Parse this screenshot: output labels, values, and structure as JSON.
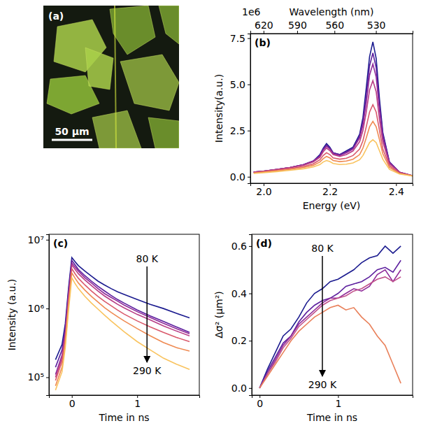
{
  "chart_data": [
    {
      "type": "image",
      "label": "(a)",
      "scale_bar": "50 µm"
    },
    {
      "type": "line",
      "label": "(b)",
      "xlabel": "Energy (eV)",
      "ylabel": "Intensity(a.u.)",
      "y_offset_label": "1e6",
      "x2label": "Wavelength (nm)",
      "xlim": [
        1.96,
        2.45
      ],
      "xticks": [
        {
          "value": 2.0,
          "label": "2.0"
        },
        {
          "value": 2.2,
          "label": "2.2"
        },
        {
          "value": 2.4,
          "label": "2.4"
        }
      ],
      "x2ticks": [
        {
          "value": 1.9998,
          "label": "620"
        },
        {
          "value": 2.1014,
          "label": "590"
        },
        {
          "value": 2.214,
          "label": "560"
        },
        {
          "value": 2.3393,
          "label": "530"
        }
      ],
      "ylim": [
        -0.35,
        7.75
      ],
      "yticks": [
        {
          "value": 0,
          "label": "0.0"
        },
        {
          "value": 2.5,
          "label": "2.5"
        },
        {
          "value": 5,
          "label": "5.0"
        },
        {
          "value": 7.5,
          "label": "7.5"
        }
      ],
      "x": [
        1.97,
        2.0,
        2.04,
        2.08,
        2.12,
        2.15,
        2.17,
        2.18,
        2.19,
        2.2,
        2.21,
        2.23,
        2.25,
        2.27,
        2.29,
        2.3,
        2.31,
        2.32,
        2.33,
        2.34,
        2.35,
        2.36,
        2.38,
        2.41,
        2.45
      ],
      "series": [
        {
          "color": "#1b1b8f",
          "values": [
            0.25,
            0.3,
            0.4,
            0.5,
            0.65,
            0.85,
            1.2,
            1.55,
            1.8,
            1.6,
            1.3,
            1.2,
            1.4,
            1.6,
            2.3,
            3.2,
            4.8,
            6.5,
            7.3,
            6.4,
            4.2,
            2.4,
            0.8,
            0.25,
            0.05
          ]
        },
        {
          "color": "#5c1f9e",
          "values": [
            0.25,
            0.3,
            0.4,
            0.5,
            0.65,
            0.85,
            1.15,
            1.5,
            1.72,
            1.55,
            1.3,
            1.2,
            1.35,
            1.55,
            2.2,
            3.0,
            4.4,
            6.0,
            6.7,
            5.9,
            3.9,
            2.3,
            0.8,
            0.25,
            0.05
          ]
        },
        {
          "color": "#8f2a99",
          "values": [
            0.25,
            0.3,
            0.4,
            0.5,
            0.65,
            0.85,
            1.1,
            1.45,
            1.65,
            1.5,
            1.25,
            1.15,
            1.3,
            1.5,
            2.1,
            2.8,
            4.0,
            5.5,
            6.1,
            5.4,
            3.6,
            2.1,
            0.75,
            0.25,
            0.05
          ]
        },
        {
          "color": "#b83d85",
          "values": [
            0.25,
            0.3,
            0.4,
            0.5,
            0.62,
            0.8,
            1.05,
            1.35,
            1.55,
            1.42,
            1.2,
            1.1,
            1.2,
            1.4,
            1.9,
            2.5,
            3.5,
            4.7,
            5.2,
            4.6,
            3.1,
            1.9,
            0.7,
            0.25,
            0.05
          ]
        },
        {
          "color": "#d9596b",
          "values": [
            0.22,
            0.28,
            0.36,
            0.45,
            0.55,
            0.7,
            0.92,
            1.15,
            1.3,
            1.2,
            1.02,
            0.95,
            1.0,
            1.15,
            1.5,
            1.95,
            2.7,
            3.5,
            3.9,
            3.5,
            2.5,
            1.5,
            0.6,
            0.2,
            0.05
          ]
        },
        {
          "color": "#ef8a52",
          "values": [
            0.2,
            0.25,
            0.32,
            0.4,
            0.5,
            0.62,
            0.8,
            0.98,
            1.1,
            1.02,
            0.88,
            0.82,
            0.85,
            0.95,
            1.2,
            1.55,
            2.1,
            2.7,
            3.0,
            2.7,
            2.0,
            1.25,
            0.5,
            0.18,
            0.05
          ]
        },
        {
          "color": "#f9c35e",
          "values": [
            0.18,
            0.22,
            0.28,
            0.35,
            0.43,
            0.53,
            0.66,
            0.8,
            0.88,
            0.82,
            0.72,
            0.66,
            0.68,
            0.75,
            0.92,
            1.15,
            1.5,
            1.85,
            2.0,
            1.85,
            1.4,
            0.95,
            0.4,
            0.15,
            0.04
          ]
        }
      ]
    },
    {
      "type": "line",
      "label": "(c)",
      "xlabel": "Time in ns",
      "ylabel": "Intensity (a.u.)",
      "log": "y",
      "annotations": [
        "80 K",
        "290 K"
      ],
      "xlim": [
        -0.35,
        1.95
      ],
      "xticks": [
        0,
        1
      ],
      "ylim": [
        55000,
        12000000
      ],
      "yticks": [
        {
          "value": 100000,
          "label": "10⁵"
        },
        {
          "value": 1000000,
          "label": "10⁶"
        },
        {
          "value": 10000000,
          "label": "10⁷"
        }
      ],
      "x": [
        -0.25,
        -0.15,
        -0.1,
        -0.05,
        0,
        0.05,
        0.1,
        0.2,
        0.3,
        0.4,
        0.5,
        0.6,
        0.7,
        0.8,
        1.0,
        1.2,
        1.4,
        1.6,
        1.8
      ],
      "series": [
        {
          "color": "#1b1b8f",
          "values": [
            180000,
            300000,
            600000,
            2000000,
            5500000,
            4800000,
            4200000,
            3500000,
            2950000,
            2500000,
            2200000,
            1950000,
            1750000,
            1600000,
            1350000,
            1150000,
            1000000,
            850000,
            730000
          ]
        },
        {
          "color": "#5c1f9e",
          "values": [
            140000,
            250000,
            520000,
            1800000,
            5000000,
            4300000,
            3700000,
            3000000,
            2500000,
            2100000,
            1800000,
            1550000,
            1350000,
            1200000,
            950000,
            780000,
            650000,
            540000,
            450000
          ]
        },
        {
          "color": "#8f2a99",
          "values": [
            110000,
            210000,
            460000,
            1600000,
            4600000,
            4000000,
            3500000,
            2800000,
            2350000,
            1950000,
            1650000,
            1450000,
            1280000,
            1120000,
            900000,
            740000,
            610000,
            510000,
            430000
          ]
        },
        {
          "color": "#b83d85",
          "values": [
            100000,
            190000,
            420000,
            1500000,
            4300000,
            3700000,
            3200000,
            2600000,
            2150000,
            1800000,
            1520000,
            1320000,
            1150000,
            1020000,
            820000,
            680000,
            560000,
            470000,
            400000
          ]
        },
        {
          "color": "#d9596b",
          "values": [
            90000,
            170000,
            370000,
            1300000,
            3800000,
            3200000,
            2750000,
            2200000,
            1800000,
            1500000,
            1270000,
            1100000,
            950000,
            830000,
            660000,
            540000,
            450000,
            380000,
            330000
          ]
        },
        {
          "color": "#ef8a52",
          "values": [
            75000,
            140000,
            310000,
            1100000,
            3300000,
            2750000,
            2350000,
            1850000,
            1500000,
            1240000,
            1030000,
            880000,
            760000,
            660000,
            510000,
            400000,
            320000,
            270000,
            240000
          ]
        },
        {
          "color": "#f9c35e",
          "values": [
            65000,
            120000,
            270000,
            950000,
            2800000,
            2300000,
            1950000,
            1500000,
            1200000,
            980000,
            800000,
            660000,
            550000,
            460000,
            330000,
            250000,
            190000,
            155000,
            130000
          ]
        }
      ]
    },
    {
      "type": "line",
      "label": "(d)",
      "xlabel": "Time in ns",
      "ylabel": "Δσ² (µm²)",
      "annotations": [
        "80 K",
        "290 K"
      ],
      "xlim": [
        -0.1,
        1.95
      ],
      "xticks": [
        0,
        1
      ],
      "ylim": [
        -0.03,
        0.65
      ],
      "yticks": [
        {
          "value": 0,
          "label": "0.0"
        },
        {
          "value": 0.2,
          "label": "0.2"
        },
        {
          "value": 0.4,
          "label": "0.4"
        },
        {
          "value": 0.6,
          "label": "0.6"
        }
      ],
      "x": [
        0,
        0.1,
        0.2,
        0.3,
        0.4,
        0.5,
        0.6,
        0.7,
        0.8,
        0.9,
        1.0,
        1.1,
        1.2,
        1.3,
        1.4,
        1.5,
        1.6,
        1.7,
        1.8
      ],
      "series": [
        {
          "color": "#1b1b8f",
          "values": [
            0,
            0.08,
            0.15,
            0.22,
            0.25,
            0.3,
            0.36,
            0.4,
            0.42,
            0.45,
            0.46,
            0.48,
            0.5,
            0.53,
            0.55,
            0.56,
            0.6,
            0.57,
            0.6
          ]
        },
        {
          "color": "#5c1f9e",
          "values": [
            0,
            0.07,
            0.13,
            0.19,
            0.22,
            0.28,
            0.32,
            0.35,
            0.37,
            0.38,
            0.4,
            0.43,
            0.44,
            0.45,
            0.47,
            0.5,
            0.51,
            0.49,
            0.54
          ]
        },
        {
          "color": "#8f2a99",
          "values": [
            0,
            0.06,
            0.12,
            0.18,
            0.22,
            0.27,
            0.3,
            0.33,
            0.36,
            0.38,
            0.38,
            0.4,
            0.42,
            0.41,
            0.43,
            0.48,
            0.5,
            0.45,
            0.5
          ]
        },
        {
          "color": "#c0508a",
          "values": [
            0,
            0.06,
            0.11,
            0.17,
            0.21,
            0.26,
            0.29,
            0.32,
            0.35,
            0.37,
            0.38,
            0.39,
            0.41,
            0.42,
            0.44,
            0.46,
            0.47,
            0.45,
            0.47
          ]
        },
        {
          "color": "#e9805a",
          "values": [
            0,
            0.05,
            0.1,
            0.15,
            0.2,
            0.24,
            0.27,
            0.3,
            0.32,
            0.34,
            0.35,
            0.33,
            0.34,
            0.3,
            0.27,
            0.22,
            0.18,
            0.1,
            0.02
          ]
        }
      ]
    }
  ]
}
